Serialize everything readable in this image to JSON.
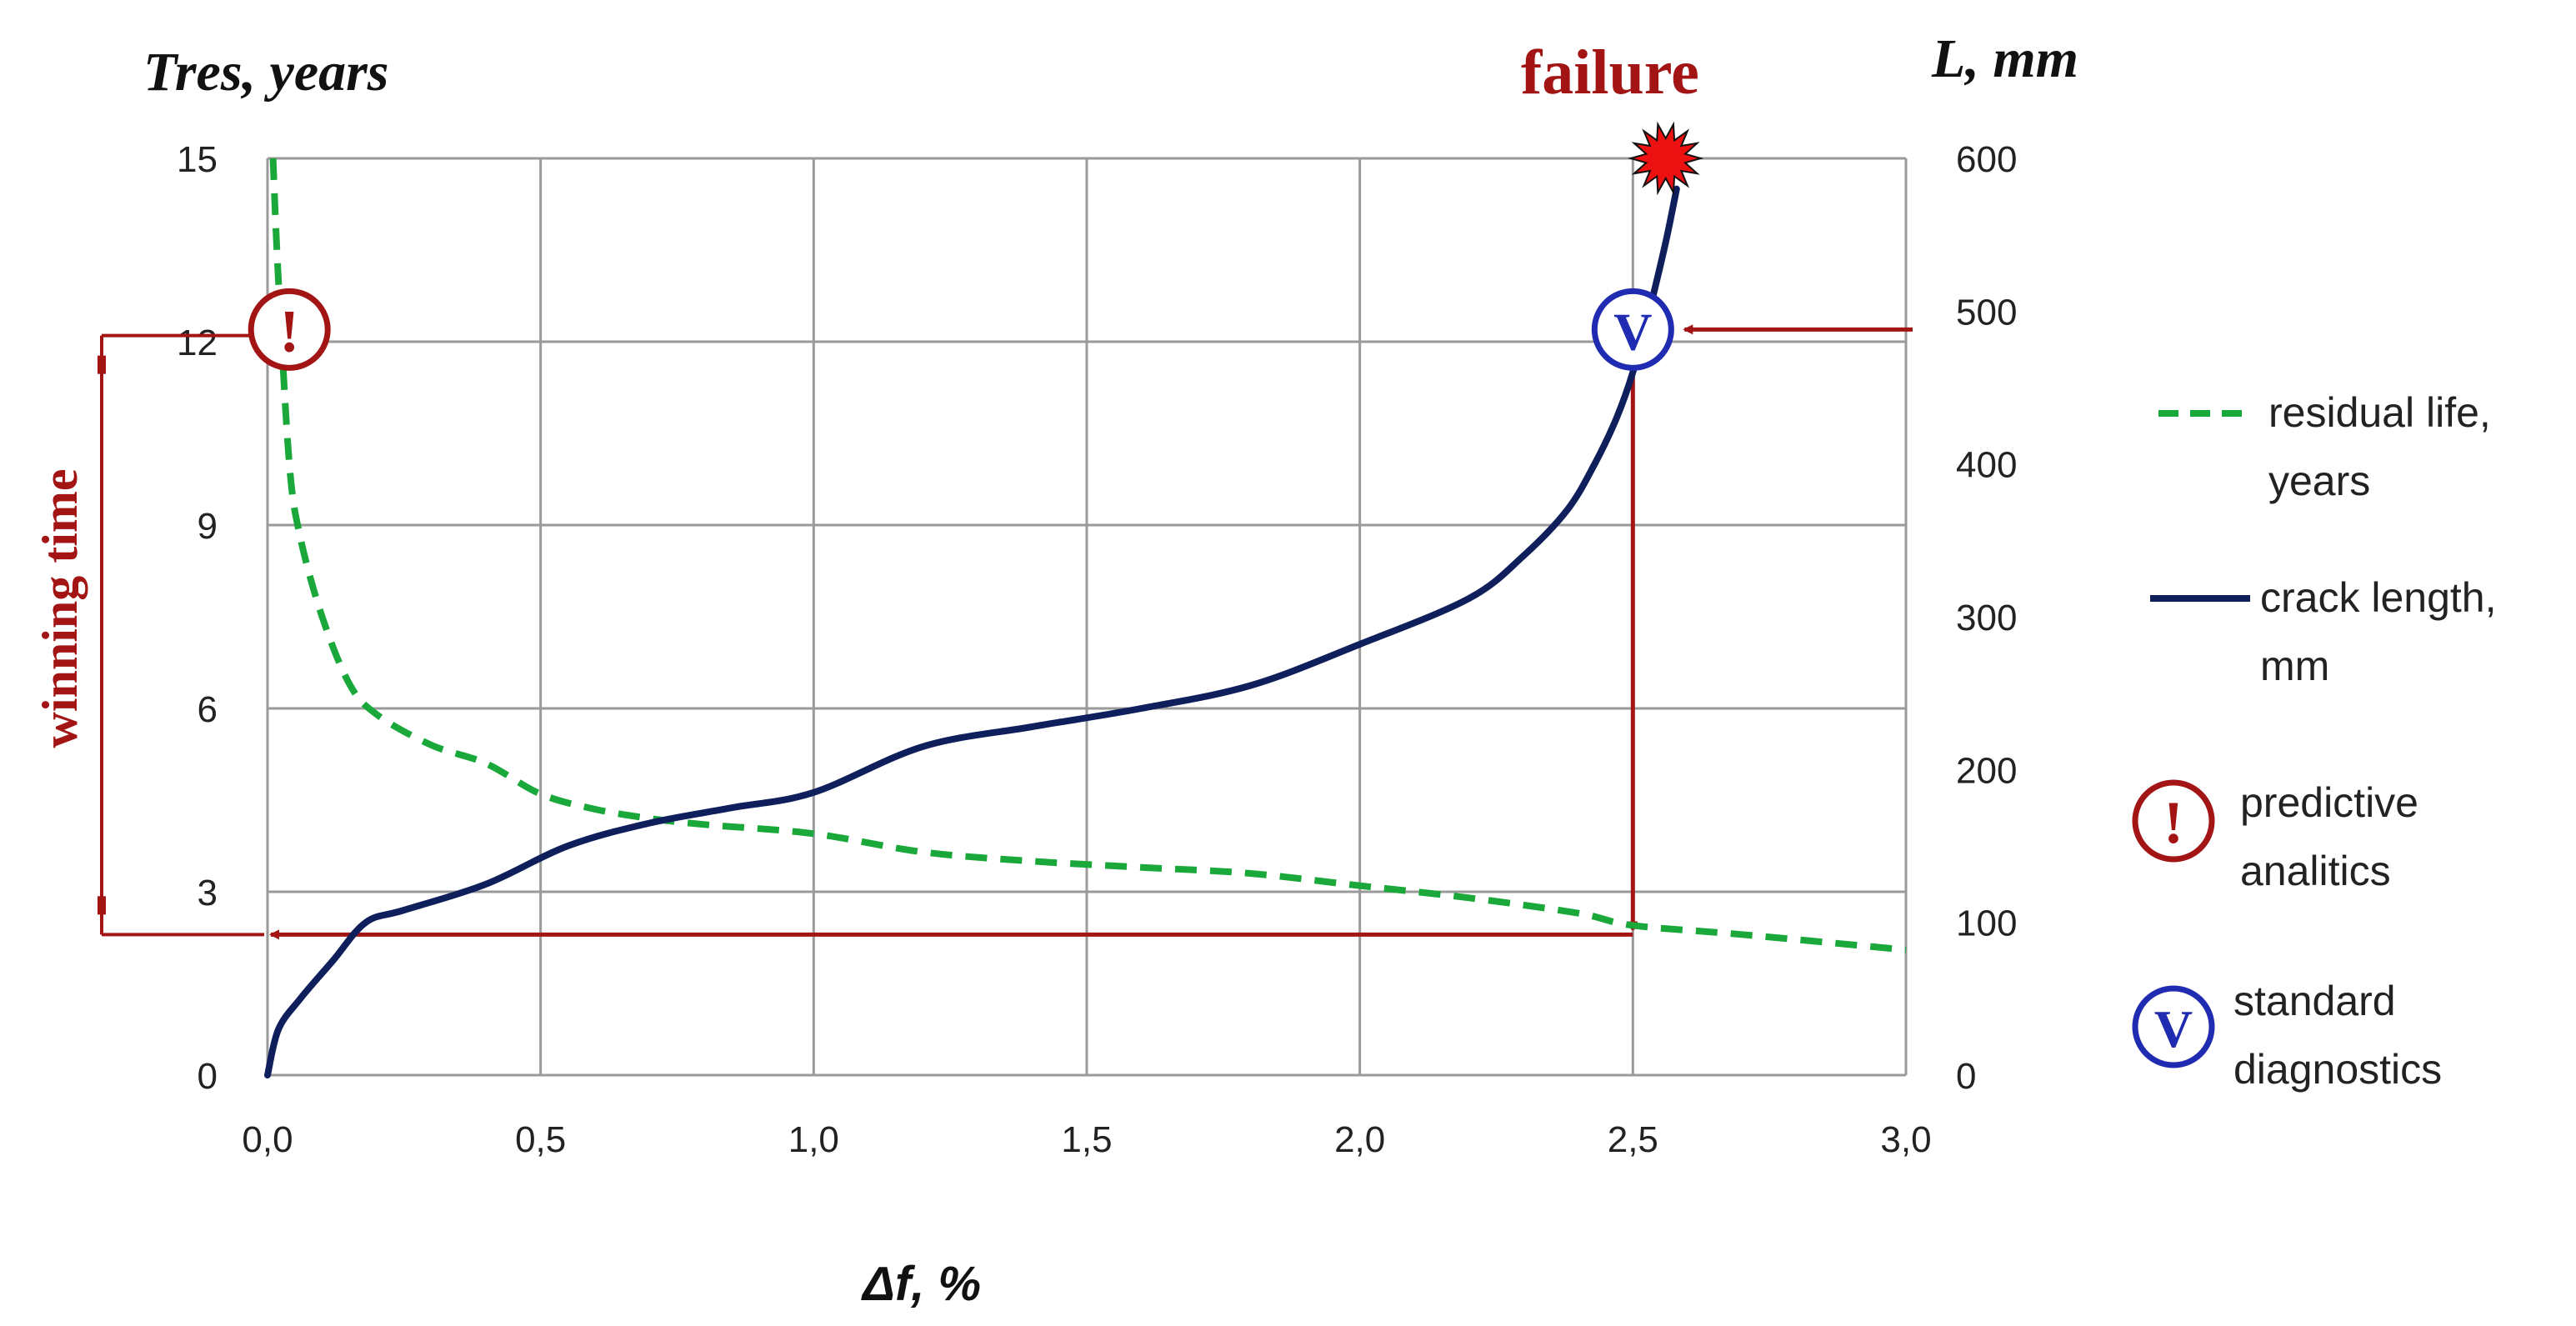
{
  "chart_data": {
    "type": "line",
    "xlabel": "Δf, %",
    "ylabel_left": "Tres, years",
    "ylabel_right": "L, mm",
    "xlim": [
      0,
      3
    ],
    "ylim_left": [
      0,
      15
    ],
    "ylim_right": [
      0,
      600
    ],
    "grid": true,
    "x_ticks": [
      "0,0",
      "0,5",
      "1,0",
      "1,5",
      "2,0",
      "2,5",
      "3,0"
    ],
    "left_ticks": [
      "0",
      "3",
      "6",
      "9",
      "12",
      "15"
    ],
    "right_ticks": [
      "0",
      "100",
      "200",
      "300",
      "400",
      "500",
      "600"
    ],
    "series": [
      {
        "name": "residual life, years",
        "axis": "left",
        "color": "#1aa83a",
        "style": "dashed",
        "x": [
          0.01,
          0.02,
          0.04,
          0.06,
          0.1,
          0.15,
          0.2,
          0.3,
          0.4,
          0.5,
          0.6,
          0.7,
          0.8,
          1.0,
          1.2,
          1.4,
          1.6,
          1.8,
          2.0,
          2.2,
          2.4,
          2.5,
          2.7,
          3.0
        ],
        "y": [
          15,
          13.0,
          10.0,
          8.8,
          7.5,
          6.4,
          5.9,
          5.4,
          5.1,
          4.6,
          4.35,
          4.2,
          4.1,
          3.95,
          3.65,
          3.5,
          3.4,
          3.3,
          3.1,
          2.9,
          2.65,
          2.45,
          2.3,
          2.05
        ]
      },
      {
        "name": "crack length, mm",
        "axis": "right",
        "color": "#0f1f5c",
        "style": "solid",
        "x": [
          0.0,
          0.02,
          0.06,
          0.12,
          0.18,
          0.25,
          0.4,
          0.55,
          0.7,
          0.85,
          1.0,
          1.2,
          1.4,
          1.6,
          1.8,
          2.0,
          2.2,
          2.3,
          2.38,
          2.43,
          2.47,
          2.5,
          2.53,
          2.56,
          2.58
        ],
        "y": [
          0,
          30,
          50,
          75,
          100,
          108,
          125,
          150,
          165,
          175,
          185,
          215,
          228,
          240,
          255,
          282,
          312,
          340,
          370,
          400,
          430,
          460,
          500,
          545,
          580
        ]
      }
    ],
    "legend": {
      "position": "right",
      "items": [
        {
          "key": "residual",
          "line1": "residual life,",
          "line2": "years"
        },
        {
          "key": "crack",
          "line1": "crack length,",
          "line2": "mm"
        },
        {
          "key": "predictive",
          "line1": "predictive",
          "line2": "analitics"
        },
        {
          "key": "standard",
          "line1": "standard",
          "line2": "diagnostics"
        }
      ]
    },
    "annotations": {
      "failure_label": "failure",
      "winning_time_label": "winning time",
      "predictive_marker": {
        "glyph": "!",
        "x": 0.04,
        "y_left": 12.2,
        "color": "#a31414"
      },
      "standard_marker": {
        "glyph": "V",
        "x": 2.5,
        "y_left": 12.2,
        "color": "#1f2bb0"
      },
      "failure_point": {
        "x": 2.56,
        "y_right": 600
      },
      "winning_time_range": [
        2.3,
        12.1
      ],
      "arrow_level_left": 2.3
    }
  },
  "colors": {
    "grid": "#9a9a9a",
    "annotation": "#a31414",
    "burst": "#ee1111"
  }
}
